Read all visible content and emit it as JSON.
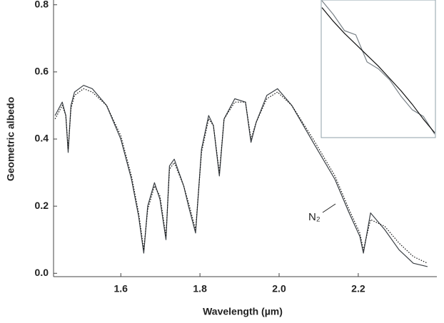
{
  "chart_data": [
    {
      "type": "line",
      "x_label": "Wavelength (µm)",
      "y_label": "Geometric albedo",
      "annotation": "N₂",
      "xlim": [
        1.43,
        2.395
      ],
      "ylim": [
        -0.01,
        0.81
      ],
      "xticks": [
        1.6,
        1.8,
        {
          "value": 2,
          "label": "2.0"
        },
        2.2
      ],
      "yticks": [
        {
          "value": 0,
          "label": "0.0"
        },
        0.2,
        0.4,
        0.6,
        0.8
      ],
      "x": [
        1.434,
        1.452,
        1.461,
        1.467,
        1.474,
        1.483,
        1.506,
        1.528,
        1.564,
        1.6,
        1.627,
        1.645,
        1.658,
        1.668,
        1.685,
        1.699,
        1.714,
        1.723,
        1.735,
        1.759,
        1.771,
        1.789,
        1.804,
        1.822,
        1.834,
        1.849,
        1.861,
        1.888,
        1.915,
        1.929,
        1.942,
        1.969,
        1.996,
        2.032,
        2.086,
        2.141,
        2.177,
        2.204,
        2.213,
        2.231,
        2.267,
        2.303,
        2.339,
        2.375
      ],
      "series": [
        {
          "color": "#3a3f44",
          "dash": false,
          "values": [
            0.47,
            0.51,
            0.47,
            0.36,
            0.5,
            0.54,
            0.56,
            0.55,
            0.5,
            0.4,
            0.28,
            0.17,
            0.06,
            0.2,
            0.27,
            0.22,
            0.1,
            0.32,
            0.34,
            0.26,
            0.2,
            0.12,
            0.37,
            0.47,
            0.44,
            0.29,
            0.46,
            0.52,
            0.51,
            0.39,
            0.45,
            0.53,
            0.55,
            0.5,
            0.39,
            0.28,
            0.18,
            0.11,
            0.06,
            0.18,
            0.13,
            0.07,
            0.03,
            0.02
          ]
        },
        {
          "color": "#111111",
          "dash": true,
          "values": [
            0.46,
            0.5,
            0.47,
            0.37,
            0.49,
            0.53,
            0.55,
            0.54,
            0.5,
            0.41,
            0.29,
            0.18,
            0.07,
            0.19,
            0.26,
            0.23,
            0.11,
            0.31,
            0.33,
            0.26,
            0.21,
            0.13,
            0.36,
            0.46,
            0.44,
            0.3,
            0.46,
            0.51,
            0.51,
            0.4,
            0.45,
            0.52,
            0.54,
            0.5,
            0.4,
            0.29,
            0.19,
            0.12,
            0.07,
            0.16,
            0.14,
            0.09,
            0.05,
            0.03
          ]
        }
      ]
    },
    {
      "type": "line",
      "xlim": [
        0,
        1
      ],
      "ylim": [
        0,
        1
      ],
      "x": [
        0,
        0.1,
        0.2,
        0.3,
        0.4,
        0.5,
        0.6,
        0.7,
        0.8,
        0.9,
        1
      ],
      "series": [
        {
          "color": "#7a8288",
          "dash": false,
          "values": [
            1,
            0.9,
            0.78,
            0.75,
            0.55,
            0.5,
            0.42,
            0.3,
            0.2,
            0.15,
            0.02
          ]
        },
        {
          "color": "#111111",
          "dash": false,
          "values": [
            0.95,
            0.85,
            0.76,
            0.68,
            0.6,
            0.52,
            0.43,
            0.34,
            0.24,
            0.13,
            0.03
          ]
        }
      ]
    }
  ]
}
